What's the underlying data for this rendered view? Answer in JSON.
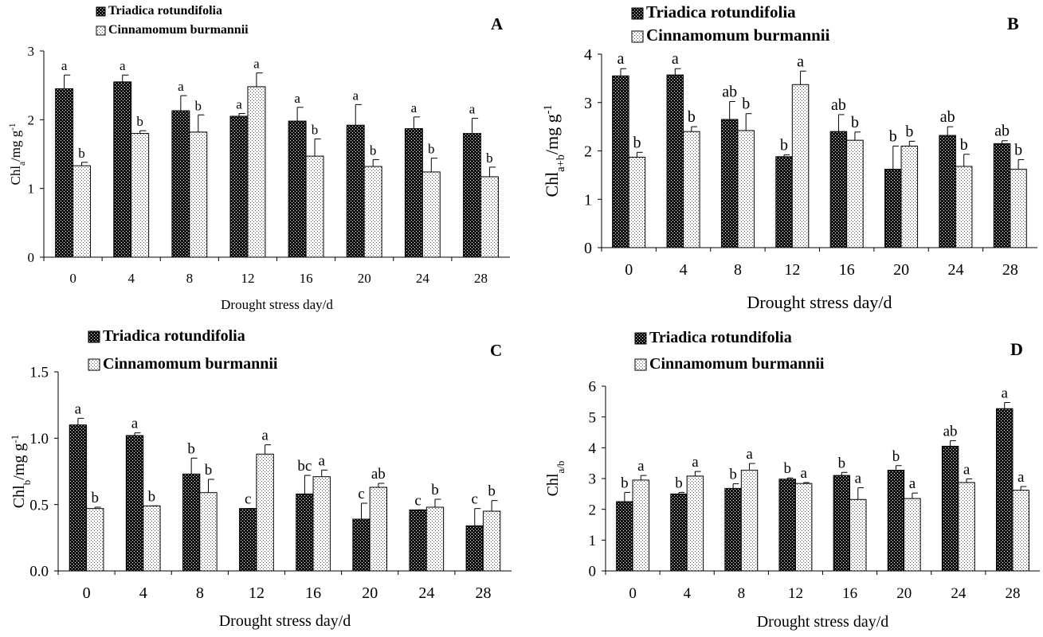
{
  "figure": {
    "xlabel": "Drought stress day/d",
    "legend": [
      "Triadica rotundifolia",
      "Cinnamomum burmannii"
    ]
  },
  "chart_data": [
    {
      "type": "bar",
      "panel": "A",
      "ylabel": "Chl",
      "ylabel_sub": "a",
      "ylabel_rest": "/mg g",
      "ylabel_sup": "-1",
      "xlabel": "Drought stress day/d",
      "categories": [
        "0",
        "4",
        "8",
        "12",
        "16",
        "20",
        "24",
        "28"
      ],
      "ylim": [
        0,
        3
      ],
      "yticks": [
        "0",
        "1",
        "2",
        "3"
      ],
      "series": [
        {
          "name": "Triadica rotundifolia",
          "values": [
            2.45,
            2.55,
            2.13,
            2.05,
            1.98,
            1.92,
            1.87,
            1.8
          ],
          "errors": [
            0.2,
            0.1,
            0.22,
            0.04,
            0.2,
            0.3,
            0.17,
            0.22
          ],
          "letters": [
            "a",
            "a",
            "a",
            "a",
            "a",
            "a",
            "a",
            "a"
          ]
        },
        {
          "name": "Cinnamomum burmannii",
          "values": [
            1.33,
            1.8,
            1.82,
            2.48,
            1.47,
            1.32,
            1.24,
            1.17
          ],
          "errors": [
            0.05,
            0.04,
            0.25,
            0.2,
            0.25,
            0.1,
            0.2,
            0.14
          ],
          "letters": [
            "b",
            "b",
            "b",
            "a",
            "b",
            "b",
            "b",
            "b"
          ]
        }
      ]
    },
    {
      "type": "bar",
      "panel": "B",
      "ylabel": "Chl",
      "ylabel_sub": "a+b",
      "ylabel_rest": "/mg g",
      "ylabel_sup": "-1",
      "xlabel": "Drought stress day/d",
      "categories": [
        "0",
        "4",
        "8",
        "12",
        "16",
        "20",
        "24",
        "28"
      ],
      "ylim": [
        0,
        4
      ],
      "yticks": [
        "0",
        "1",
        "2",
        "3",
        "4"
      ],
      "series": [
        {
          "name": "Triadica rotundifolia",
          "values": [
            3.55,
            3.57,
            2.65,
            1.88,
            2.4,
            1.62,
            2.32,
            2.15
          ],
          "errors": [
            0.15,
            0.13,
            0.37,
            0.04,
            0.35,
            0.48,
            0.18,
            0.06
          ],
          "letters": [
            "a",
            "a",
            "ab",
            "b",
            "ab",
            "b",
            "ab",
            "ab"
          ]
        },
        {
          "name": "Cinnamomum burmannii",
          "values": [
            1.87,
            2.4,
            2.42,
            3.37,
            2.22,
            2.1,
            1.68,
            1.62
          ],
          "errors": [
            0.1,
            0.1,
            0.35,
            0.28,
            0.17,
            0.1,
            0.25,
            0.2
          ],
          "letters": [
            "b",
            "b",
            "b",
            "a",
            "b",
            "b",
            "b",
            "b"
          ]
        }
      ]
    },
    {
      "type": "bar",
      "panel": "C",
      "ylabel": "Chl",
      "ylabel_sub": "b",
      "ylabel_rest": "/mg g",
      "ylabel_sup": "-1",
      "xlabel": "Drought stress day/d",
      "categories": [
        "0",
        "4",
        "8",
        "12",
        "16",
        "20",
        "24",
        "28"
      ],
      "ylim": [
        0,
        1.5
      ],
      "yticks": [
        "0.0",
        "0.5",
        "1.0",
        "1.5"
      ],
      "series": [
        {
          "name": "Triadica rotundifolia",
          "values": [
            1.1,
            1.02,
            0.73,
            0.47,
            0.58,
            0.39,
            0.46,
            0.34
          ],
          "errors": [
            0.05,
            0.02,
            0.12,
            0.0,
            0.14,
            0.12,
            0.0,
            0.13
          ],
          "letters": [
            "a",
            "a",
            "b",
            "c",
            "bc",
            "c",
            "c",
            "c"
          ]
        },
        {
          "name": "Cinnamomum burmannii",
          "values": [
            0.47,
            0.49,
            0.59,
            0.88,
            0.71,
            0.63,
            0.48,
            0.45
          ],
          "errors": [
            0.01,
            0.0,
            0.1,
            0.07,
            0.05,
            0.03,
            0.06,
            0.08
          ],
          "letters": [
            "b",
            "b",
            "b",
            "a",
            "a",
            "ab",
            "b",
            "b"
          ]
        }
      ]
    },
    {
      "type": "bar",
      "panel": "D",
      "ylabel": "Chl",
      "ylabel_sub": "a/b",
      "ylabel_rest": "",
      "ylabel_sup": "",
      "xlabel": "Drought stress day/d",
      "categories": [
        "0",
        "4",
        "8",
        "12",
        "16",
        "20",
        "24",
        "28"
      ],
      "ylim": [
        0,
        6
      ],
      "yticks": [
        "0",
        "1",
        "2",
        "3",
        "4",
        "5",
        "6"
      ],
      "series": [
        {
          "name": "Triadica rotundifolia",
          "values": [
            2.25,
            2.5,
            2.68,
            2.98,
            3.1,
            3.27,
            4.05,
            5.27
          ],
          "errors": [
            0.3,
            0.05,
            0.15,
            0.04,
            0.1,
            0.15,
            0.18,
            0.2
          ],
          "letters": [
            "b",
            "b",
            "b",
            "b",
            "b",
            "b",
            "ab",
            "a"
          ]
        },
        {
          "name": "Cinnamomum burmannii",
          "values": [
            2.95,
            3.08,
            3.27,
            2.84,
            2.32,
            2.35,
            2.87,
            2.62
          ],
          "errors": [
            0.15,
            0.15,
            0.22,
            0.03,
            0.38,
            0.18,
            0.12,
            0.12
          ],
          "letters": [
            "a",
            "a",
            "a",
            "a",
            "a",
            "a",
            "a",
            "a"
          ]
        }
      ]
    }
  ]
}
